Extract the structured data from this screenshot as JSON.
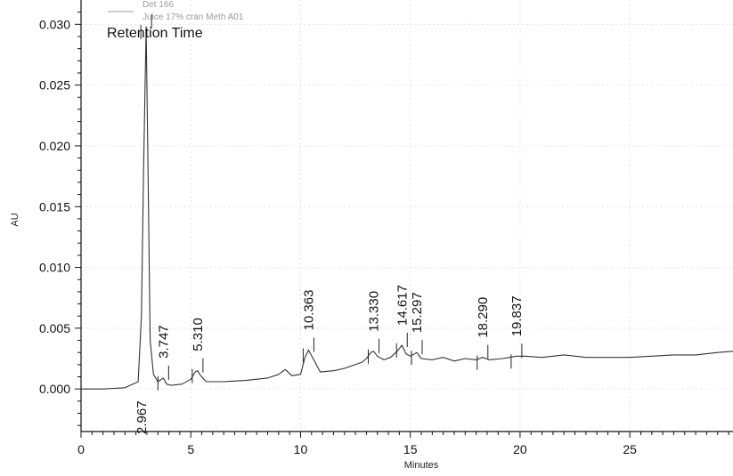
{
  "chart_data": {
    "type": "line",
    "xlabel": "Minutes",
    "ylabel": "AU",
    "xlim": [
      0,
      29.7
    ],
    "ylim": [
      -0.0035,
      0.032
    ],
    "x_ticks": [
      0,
      5,
      10,
      15,
      20,
      25
    ],
    "y_ticks": [
      0.0,
      0.005,
      0.01,
      0.015,
      0.02,
      0.025,
      0.03
    ],
    "y_tick_labels": [
      "0.000",
      "0.005",
      "0.010",
      "0.015",
      "0.020",
      "0.025",
      "0.030"
    ],
    "grid": true,
    "legend": {
      "placement": "top-left",
      "entries": [
        "Det 166",
        "Juice 17% cran Meth A01"
      ]
    },
    "annotation": "Retention Time",
    "series": [
      {
        "name": "Juice 17% cran Meth A01",
        "x": [
          0,
          1.0,
          2.0,
          2.6,
          2.75,
          2.85,
          2.967,
          3.05,
          3.15,
          3.3,
          3.5,
          3.747,
          3.9,
          4.1,
          4.6,
          5.0,
          5.2,
          5.31,
          5.45,
          5.7,
          6.5,
          7.5,
          8.5,
          9.0,
          9.3,
          9.6,
          10.0,
          10.2,
          10.363,
          10.6,
          10.9,
          11.5,
          12.0,
          12.8,
          13.0,
          13.2,
          13.33,
          13.5,
          13.8,
          14.1,
          14.4,
          14.617,
          14.8,
          15.0,
          15.297,
          15.5,
          16.0,
          16.5,
          17.0,
          17.5,
          18.0,
          18.29,
          18.6,
          19.2,
          19.837,
          20.2,
          21.0,
          22.0,
          23.0,
          24.0,
          25.0,
          26.0,
          27.0,
          28.0,
          29.0,
          29.7
        ],
        "y": [
          0,
          0,
          0.0001,
          0.0006,
          0.006,
          0.018,
          0.0298,
          0.018,
          0.004,
          0.0012,
          0.0006,
          0.0009,
          0.0004,
          0.0003,
          0.0004,
          0.0008,
          0.0014,
          0.0015,
          0.0011,
          0.0006,
          0.0006,
          0.0007,
          0.0009,
          0.0012,
          0.0016,
          0.0011,
          0.0012,
          0.0026,
          0.0032,
          0.0024,
          0.0014,
          0.0015,
          0.0017,
          0.0022,
          0.0025,
          0.003,
          0.0031,
          0.0027,
          0.0024,
          0.0026,
          0.0031,
          0.0036,
          0.0029,
          0.0027,
          0.003,
          0.0025,
          0.0024,
          0.0026,
          0.0023,
          0.0025,
          0.0024,
          0.0026,
          0.0024,
          0.0025,
          0.0027,
          0.0027,
          0.0026,
          0.0028,
          0.0026,
          0.0026,
          0.0026,
          0.0027,
          0.0028,
          0.0028,
          0.003,
          0.0031
        ]
      }
    ],
    "peak_labels": [
      {
        "label": "2.967",
        "x": 2.967
      },
      {
        "label": "3.747",
        "x": 3.747
      },
      {
        "label": "5.310",
        "x": 5.31
      },
      {
        "label": "10.363",
        "x": 10.363
      },
      {
        "label": "13.330",
        "x": 13.33
      },
      {
        "label": "14.617",
        "x": 14.617
      },
      {
        "label": "15.297",
        "x": 15.297
      },
      {
        "label": "18.290",
        "x": 18.29
      },
      {
        "label": "19.837",
        "x": 19.837
      }
    ]
  }
}
